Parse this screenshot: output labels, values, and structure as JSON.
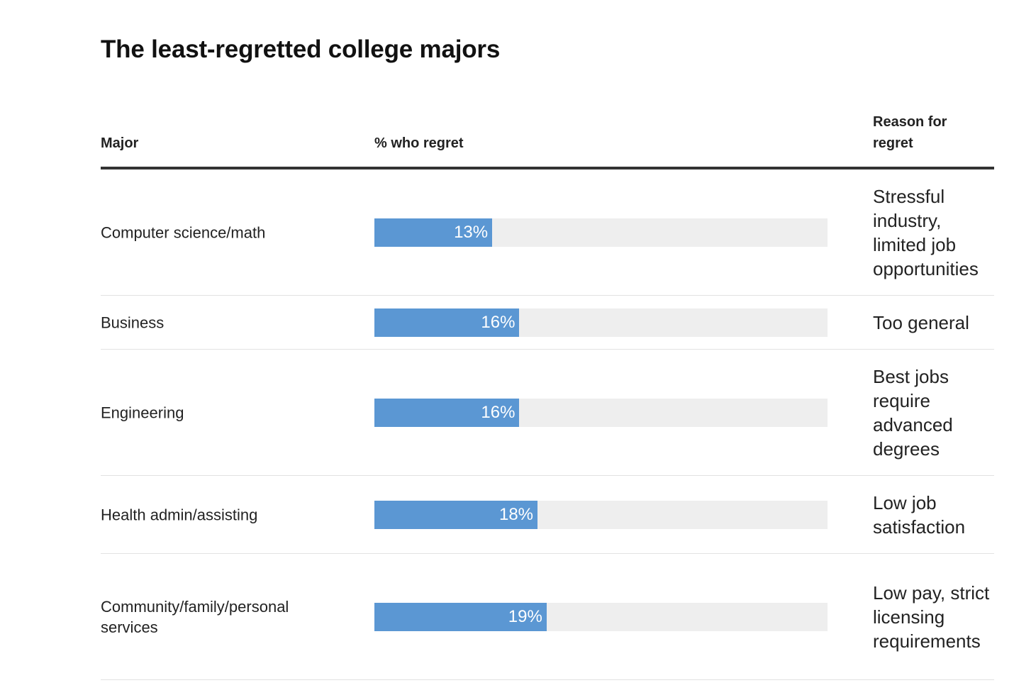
{
  "title": "The least-regretted college majors",
  "header": {
    "major": "Major",
    "pct": "% who regret",
    "reason": "Reason for regret"
  },
  "colors": {
    "bar": "#5b97d3",
    "track": "#eeeeee"
  },
  "chart_data": {
    "type": "bar",
    "orientation": "horizontal",
    "title": "The least-regretted college majors",
    "xlim": [
      0,
      50
    ],
    "categories": [
      "Computer science/math",
      "Business",
      "Engineering",
      "Health admin/assisting",
      "Community/family/personal services"
    ],
    "values": [
      13,
      16,
      16,
      18,
      19
    ],
    "value_labels": [
      "13%",
      "16%",
      "16%",
      "18%",
      "19%"
    ],
    "reasons": [
      "Stressful industry, limited job opportunities",
      "Too general",
      "Best jobs require advanced degrees",
      "Low job satisfaction",
      "Low pay, strict licensing requirements"
    ]
  }
}
